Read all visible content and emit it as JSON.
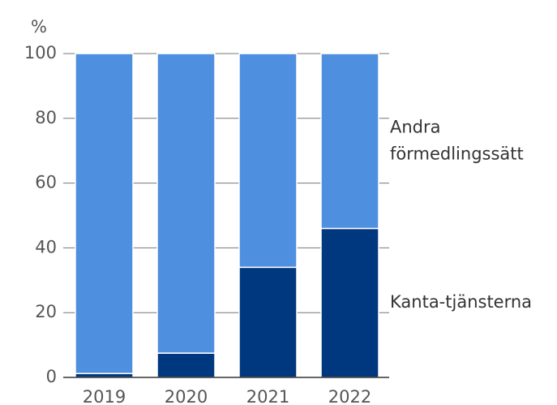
{
  "chart_data": {
    "type": "stacked_bar",
    "y_label": "%",
    "categories": [
      "2019",
      "2020",
      "2021",
      "2022"
    ],
    "series": [
      {
        "name": "Kanta-tjänsterna",
        "color": "#00387f",
        "values": [
          1.2,
          7.5,
          34,
          46
        ]
      },
      {
        "name": "Andra förmedlingssätt",
        "color": "#4f8fe0",
        "values": [
          98.8,
          92.5,
          66,
          54
        ]
      }
    ],
    "ylim": [
      0,
      100
    ],
    "yticks": [
      0,
      20,
      40,
      60,
      80,
      100
    ],
    "grid": true,
    "legend": "right"
  }
}
